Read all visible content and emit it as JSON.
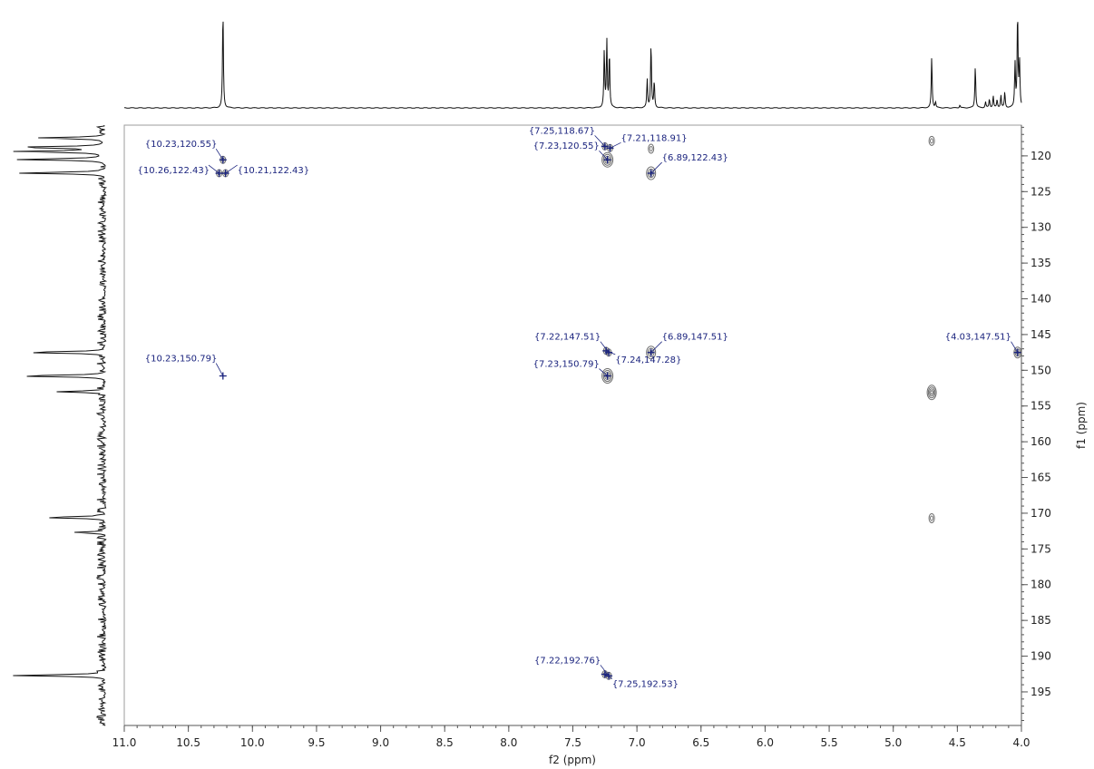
{
  "chart_data": {
    "type": "scatter",
    "title": "",
    "xlabel": "f2 (ppm)",
    "ylabel": "f1 (ppm)",
    "xlim": [
      11.0,
      4.0
    ],
    "ylim": [
      115.7,
      199.7
    ],
    "x_reversed": true,
    "grid": false,
    "x_ticks": [
      11.0,
      10.5,
      10.0,
      9.5,
      9.0,
      8.5,
      8.0,
      7.5,
      7.0,
      6.5,
      6.0,
      5.5,
      5.0,
      4.5,
      4.0
    ],
    "x_tick_labels": [
      "11.0",
      "10.5",
      "10.0",
      "9.5",
      "9.0",
      "8.5",
      "8.0",
      "7.5",
      "7.0",
      "6.5",
      "6.0",
      "5.5",
      "5.0",
      "4.5",
      "4.0"
    ],
    "y_ticks": [
      120,
      125,
      130,
      135,
      140,
      145,
      150,
      155,
      160,
      165,
      170,
      175,
      180,
      185,
      190,
      195
    ],
    "y_tick_labels": [
      "120",
      "125",
      "130",
      "135",
      "140",
      "145",
      "150",
      "155",
      "160",
      "165",
      "170",
      "175",
      "180",
      "185",
      "190",
      "195"
    ],
    "peaks": [
      {
        "x": 10.23,
        "y": 120.55,
        "label": "{10.23,120.55}"
      },
      {
        "x": 10.26,
        "y": 122.43,
        "label": "{10.26,122.43}"
      },
      {
        "x": 10.21,
        "y": 122.43,
        "label": "{10.21,122.43}"
      },
      {
        "x": 7.25,
        "y": 118.67,
        "label": "{7.25,118.67}"
      },
      {
        "x": 7.21,
        "y": 118.91,
        "label": "{7.21,118.91}"
      },
      {
        "x": 7.23,
        "y": 120.55,
        "label": "{7.23,120.55}"
      },
      {
        "x": 6.89,
        "y": 122.43,
        "label": "{6.89,122.43}"
      },
      {
        "x": 7.22,
        "y": 147.51,
        "label": "{7.22,147.51}"
      },
      {
        "x": 6.89,
        "y": 147.51,
        "label": "{6.89,147.51}"
      },
      {
        "x": 4.03,
        "y": 147.51,
        "label": "{4.03,147.51}"
      },
      {
        "x": 10.23,
        "y": 150.79,
        "label": "{10.23,150.79}"
      },
      {
        "x": 7.23,
        "y": 150.79,
        "label": "{7.23,150.79}"
      },
      {
        "x": 7.24,
        "y": 147.28,
        "label": "{7.24,147.28}"
      },
      {
        "x": 7.22,
        "y": 192.76,
        "label": "{7.22,192.76}"
      },
      {
        "x": 7.25,
        "y": 192.53,
        "label": "{7.25,192.53}"
      }
    ],
    "unlabeled_contours": [
      {
        "x": 4.7,
        "y": 117.9
      },
      {
        "x": 6.89,
        "y": 119.0
      },
      {
        "x": 4.7,
        "y": 153.1
      },
      {
        "x": 4.7,
        "y": 170.7
      }
    ],
    "f2_projection_peaks": [
      {
        "x": 10.23,
        "h": 1.0
      },
      {
        "x": 7.255,
        "h": 0.58
      },
      {
        "x": 7.235,
        "h": 0.68
      },
      {
        "x": 7.215,
        "h": 0.56
      },
      {
        "x": 6.92,
        "h": 0.29
      },
      {
        "x": 6.89,
        "h": 0.66
      },
      {
        "x": 6.865,
        "h": 0.27
      },
      {
        "x": 4.7,
        "h": 0.52
      },
      {
        "x": 4.67,
        "h": 0.06
      },
      {
        "x": 4.36,
        "h": 0.43
      },
      {
        "x": 4.48,
        "h": 0.03
      },
      {
        "x": 4.28,
        "h": 0.06
      },
      {
        "x": 4.25,
        "h": 0.09
      },
      {
        "x": 4.22,
        "h": 0.12
      },
      {
        "x": 4.19,
        "h": 0.08
      },
      {
        "x": 4.16,
        "h": 0.13
      },
      {
        "x": 4.13,
        "h": 0.16
      },
      {
        "x": 4.05,
        "h": 0.45
      },
      {
        "x": 4.03,
        "h": 0.97
      },
      {
        "x": 4.015,
        "h": 0.47
      }
    ],
    "f1_projection_peaks": [
      {
        "y": 116.0,
        "h": 0.12
      },
      {
        "y": 117.5,
        "h": 0.72
      },
      {
        "y": 118.8,
        "h": 0.93
      },
      {
        "y": 119.4,
        "h": 0.93
      },
      {
        "y": 120.5,
        "h": 0.93
      },
      {
        "y": 122.4,
        "h": 0.93
      },
      {
        "y": 147.5,
        "h": 0.88
      },
      {
        "y": 150.8,
        "h": 0.95
      },
      {
        "y": 153.0,
        "h": 0.52
      },
      {
        "y": 170.6,
        "h": 0.67
      },
      {
        "y": 172.7,
        "h": 0.36
      },
      {
        "y": 192.7,
        "h": 0.99
      }
    ]
  }
}
